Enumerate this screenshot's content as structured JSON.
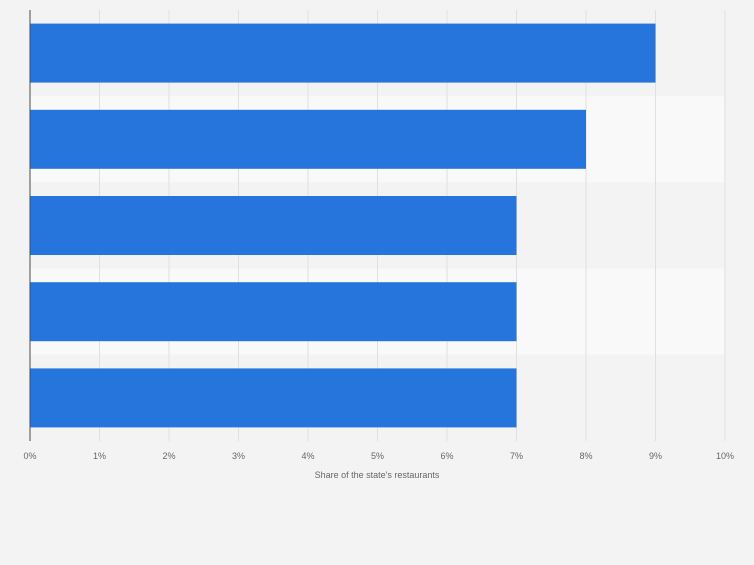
{
  "chart_data": {
    "type": "bar",
    "orientation": "horizontal",
    "categories": [
      "",
      "",
      "",
      "",
      ""
    ],
    "values": [
      9,
      8,
      7,
      7,
      7
    ],
    "unit": "%",
    "xlabel": "Share of the state's restaurants",
    "ylabel": "",
    "xlim": [
      0,
      10
    ],
    "xticks": [
      "0%",
      "1%",
      "2%",
      "3%",
      "4%",
      "5%",
      "6%",
      "7%",
      "8%",
      "9%",
      "10%"
    ],
    "grid": true,
    "legend": "none"
  },
  "colors": {
    "bar": "#2675dc",
    "background": "#f3f3f3",
    "band_alt": "#f9f9f9",
    "grid": "#e0e0e0",
    "axis": "#4a4a4a",
    "tick_text": "#666666"
  }
}
